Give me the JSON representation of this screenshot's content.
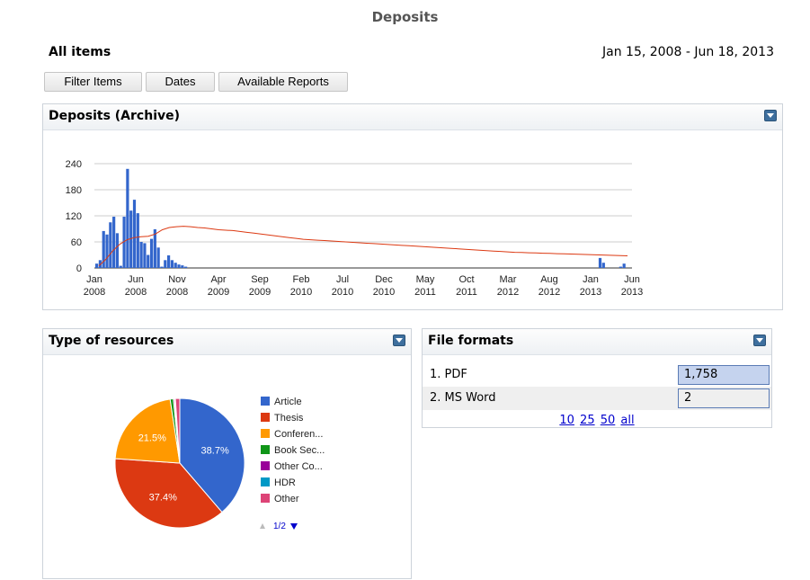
{
  "page_title": "Deposits",
  "scope_label": "All items",
  "date_range": "Jan 15, 2008 - Jun 18, 2013",
  "toolbar": {
    "filter_label": "Filter Items",
    "dates_label": "Dates",
    "reports_label": "Available Reports"
  },
  "deposits_panel": {
    "title": "Deposits (Archive)"
  },
  "resources_panel": {
    "title": "Type of resources"
  },
  "formats_panel": {
    "title": "File formats",
    "rows": [
      {
        "label": "1.  PDF",
        "value": "1,758",
        "share": 0.999
      },
      {
        "label": "2.  MS Word",
        "value": "2",
        "share": 0.001
      }
    ],
    "page_sizes": [
      "10",
      "25",
      "50",
      "all"
    ]
  },
  "colors": {
    "bar": "#3366cc",
    "trend": "#dc3912",
    "header_blue": "#3e6f9e"
  },
  "chart_data": [
    {
      "type": "bar",
      "title": "",
      "ylim": [
        0,
        240
      ],
      "yticks": [
        "0",
        "60",
        "120",
        "180",
        "240"
      ],
      "xticks": [
        [
          "Jan",
          "2008"
        ],
        [
          "Jun",
          "2008"
        ],
        [
          "Nov",
          "2008"
        ],
        [
          "Apr",
          "2009"
        ],
        [
          "Sep",
          "2009"
        ],
        [
          "Feb",
          "2010"
        ],
        [
          "Jul",
          "2010"
        ],
        [
          "Dec",
          "2010"
        ],
        [
          "May",
          "2011"
        ],
        [
          "Oct",
          "2011"
        ],
        [
          "Mar",
          "2012"
        ],
        [
          "Aug",
          "2012"
        ],
        [
          "Jan",
          "2013"
        ],
        [
          "Jun",
          "2013"
        ]
      ],
      "series": [
        {
          "values": [
            10,
            18,
            85,
            77,
            105,
            118,
            80,
            5,
            118,
            228,
            132,
            157,
            126,
            60,
            57,
            30,
            67,
            89,
            47,
            3,
            18,
            29,
            18,
            12,
            8,
            6,
            3,
            0,
            0,
            0,
            0,
            0,
            0,
            0,
            0,
            0,
            0,
            0,
            0,
            0,
            0,
            0,
            0,
            0,
            0,
            0,
            0,
            0,
            0,
            0,
            0,
            0,
            0,
            0,
            0,
            0,
            0,
            0,
            0,
            0,
            0,
            0,
            0,
            0,
            0,
            0,
            0,
            0,
            0,
            0,
            0,
            0,
            0,
            0,
            0,
            0,
            0,
            0,
            0,
            0,
            0,
            0,
            0,
            0,
            0,
            0,
            0,
            0,
            0,
            0,
            0,
            0,
            0,
            0,
            0,
            0,
            0,
            0,
            0,
            0,
            0,
            0,
            0,
            0,
            0,
            0,
            0,
            0,
            0,
            0,
            0,
            0,
            0,
            0,
            0,
            0,
            0,
            0,
            0,
            0,
            0,
            0,
            0,
            0,
            0,
            0,
            0,
            0,
            0,
            0,
            0,
            0,
            0,
            0,
            0,
            0,
            0,
            0,
            0,
            0,
            0,
            0,
            0,
            0,
            0,
            0,
            0,
            23,
            12,
            0,
            0,
            0,
            0,
            3,
            10,
            0,
            0
          ]
        },
        {
          "type": "line",
          "values": [
            5,
            20,
            40,
            55,
            65,
            70,
            72,
            73,
            78,
            88,
            93,
            95,
            96,
            95,
            93,
            92,
            90,
            88,
            87,
            86,
            84,
            82,
            80,
            78,
            76,
            74,
            72,
            70,
            68,
            66,
            65,
            64,
            63,
            62,
            61,
            60,
            59,
            58,
            57,
            56,
            55,
            54,
            53,
            52,
            51,
            50,
            49,
            48,
            47,
            46,
            45,
            44,
            43,
            42,
            41,
            40,
            39,
            38,
            37,
            36,
            35.5,
            35,
            34.5,
            34,
            33.5,
            33,
            32.5,
            32,
            31.5,
            31,
            30.5,
            30,
            29.5,
            29,
            28.5,
            28
          ]
        }
      ]
    },
    {
      "type": "pie",
      "title": "",
      "legend_position": "right",
      "legend_page": "1/2",
      "slices": [
        {
          "name": "Article",
          "value": 38.7,
          "label": "38.7%",
          "color": "#3366cc"
        },
        {
          "name": "Thesis",
          "value": 37.4,
          "label": "37.4%",
          "color": "#dc3912"
        },
        {
          "name": "Conferen...",
          "value": 21.5,
          "label": "21.5%",
          "color": "#ff9900"
        },
        {
          "name": "Book Sec...",
          "value": 0.8,
          "color": "#109618"
        },
        {
          "name": "Other Co...",
          "value": 0.3,
          "color": "#990099"
        },
        {
          "name": "HDR",
          "value": 0.2,
          "color": "#0099c6"
        },
        {
          "name": "Other",
          "value": 1.1,
          "color": "#dd4477"
        }
      ]
    }
  ]
}
